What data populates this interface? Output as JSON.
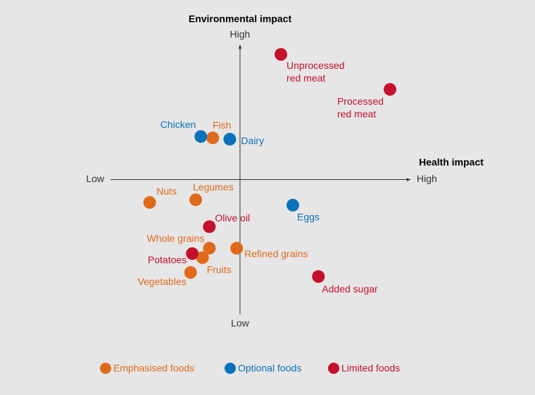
{
  "chart_data": {
    "type": "scatter",
    "y_axis_title": "Environmental impact",
    "x_axis_title": "Health impact",
    "xlim": [
      -0.76,
      1
    ],
    "ylim": [
      -1,
      1
    ],
    "xticks": [
      {
        "value": -0.76,
        "label": "Low"
      },
      {
        "value": 1,
        "label": "High"
      }
    ],
    "yticks": [
      {
        "value": -1,
        "label": "Low"
      },
      {
        "value": 1,
        "label": "High"
      }
    ],
    "legend": "bottom",
    "series": [
      {
        "name": "Emphasised foods",
        "color": "#e06a1c",
        "points": [
          {
            "label": "Fish",
            "x": -0.16,
            "y": 0.31
          },
          {
            "label": "Nuts",
            "x": -0.53,
            "y": -0.17
          },
          {
            "label": "Legumes",
            "x": -0.26,
            "y": -0.15
          },
          {
            "label": "Whole grains",
            "x": -0.18,
            "y": -0.51
          },
          {
            "label": "Fruits",
            "x": -0.22,
            "y": -0.58
          },
          {
            "label": "Vegetables",
            "x": -0.29,
            "y": -0.69
          },
          {
            "label": "Refined grains",
            "x": -0.02,
            "y": -0.51
          }
        ]
      },
      {
        "name": "Optional foods",
        "color": "#0a72ba",
        "points": [
          {
            "label": "Chicken",
            "x": -0.23,
            "y": 0.32
          },
          {
            "label": "Dairy",
            "x": -0.06,
            "y": 0.3
          },
          {
            "label": "Eggs",
            "x": 0.31,
            "y": -0.19
          }
        ]
      },
      {
        "name": "Limited foods",
        "color": "#c5102c",
        "points": [
          {
            "label": [
              "Unprocessed",
              "red meat"
            ],
            "x": 0.24,
            "y": 0.93
          },
          {
            "label": [
              "Processed",
              "red meat"
            ],
            "x": 0.88,
            "y": 0.67
          },
          {
            "label": "Olive oil",
            "x": -0.18,
            "y": -0.35
          },
          {
            "label": "Potatoes",
            "x": -0.28,
            "y": -0.55
          },
          {
            "label": "Added sugar",
            "x": 0.46,
            "y": -0.72
          }
        ]
      }
    ]
  }
}
